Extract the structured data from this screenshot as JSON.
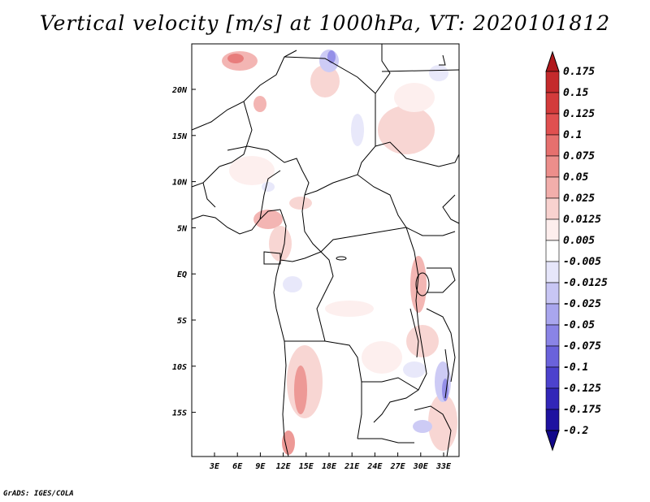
{
  "title": "Vertical velocity [m/s] at 1000hPa, VT: 2020101812",
  "credit": "GrADS: IGES/COLA",
  "map": {
    "region": "Central/West Africa",
    "lat_ticks": [
      "20N",
      "15N",
      "10N",
      "5N",
      "EQ",
      "5S",
      "10S",
      "15S"
    ],
    "lon_ticks": [
      "3E",
      "6E",
      "9E",
      "12E",
      "15E",
      "18E",
      "21E",
      "24E",
      "27E",
      "30E",
      "33E"
    ]
  },
  "colorbar": {
    "levels": [
      "0.175",
      "0.15",
      "0.125",
      "0.1",
      "0.075",
      "0.05",
      "0.025",
      "0.0125",
      "0.005",
      "-0.005",
      "-0.0125",
      "-0.025",
      "-0.05",
      "-0.075",
      "-0.1",
      "-0.125",
      "-0.175",
      "-0.2"
    ],
    "colors": [
      "#b0181c",
      "#c42a2c",
      "#d33b3b",
      "#e05050",
      "#e6706e",
      "#ec8e8b",
      "#f2aeab",
      "#f8d2cf",
      "#fdeeed",
      "#ffffff",
      "#e6e6fa",
      "#c8c6f4",
      "#a9a6ee",
      "#8a84e6",
      "#6a62db",
      "#4c42cd",
      "#3226b8",
      "#1e12a0",
      "#12088a"
    ]
  }
}
